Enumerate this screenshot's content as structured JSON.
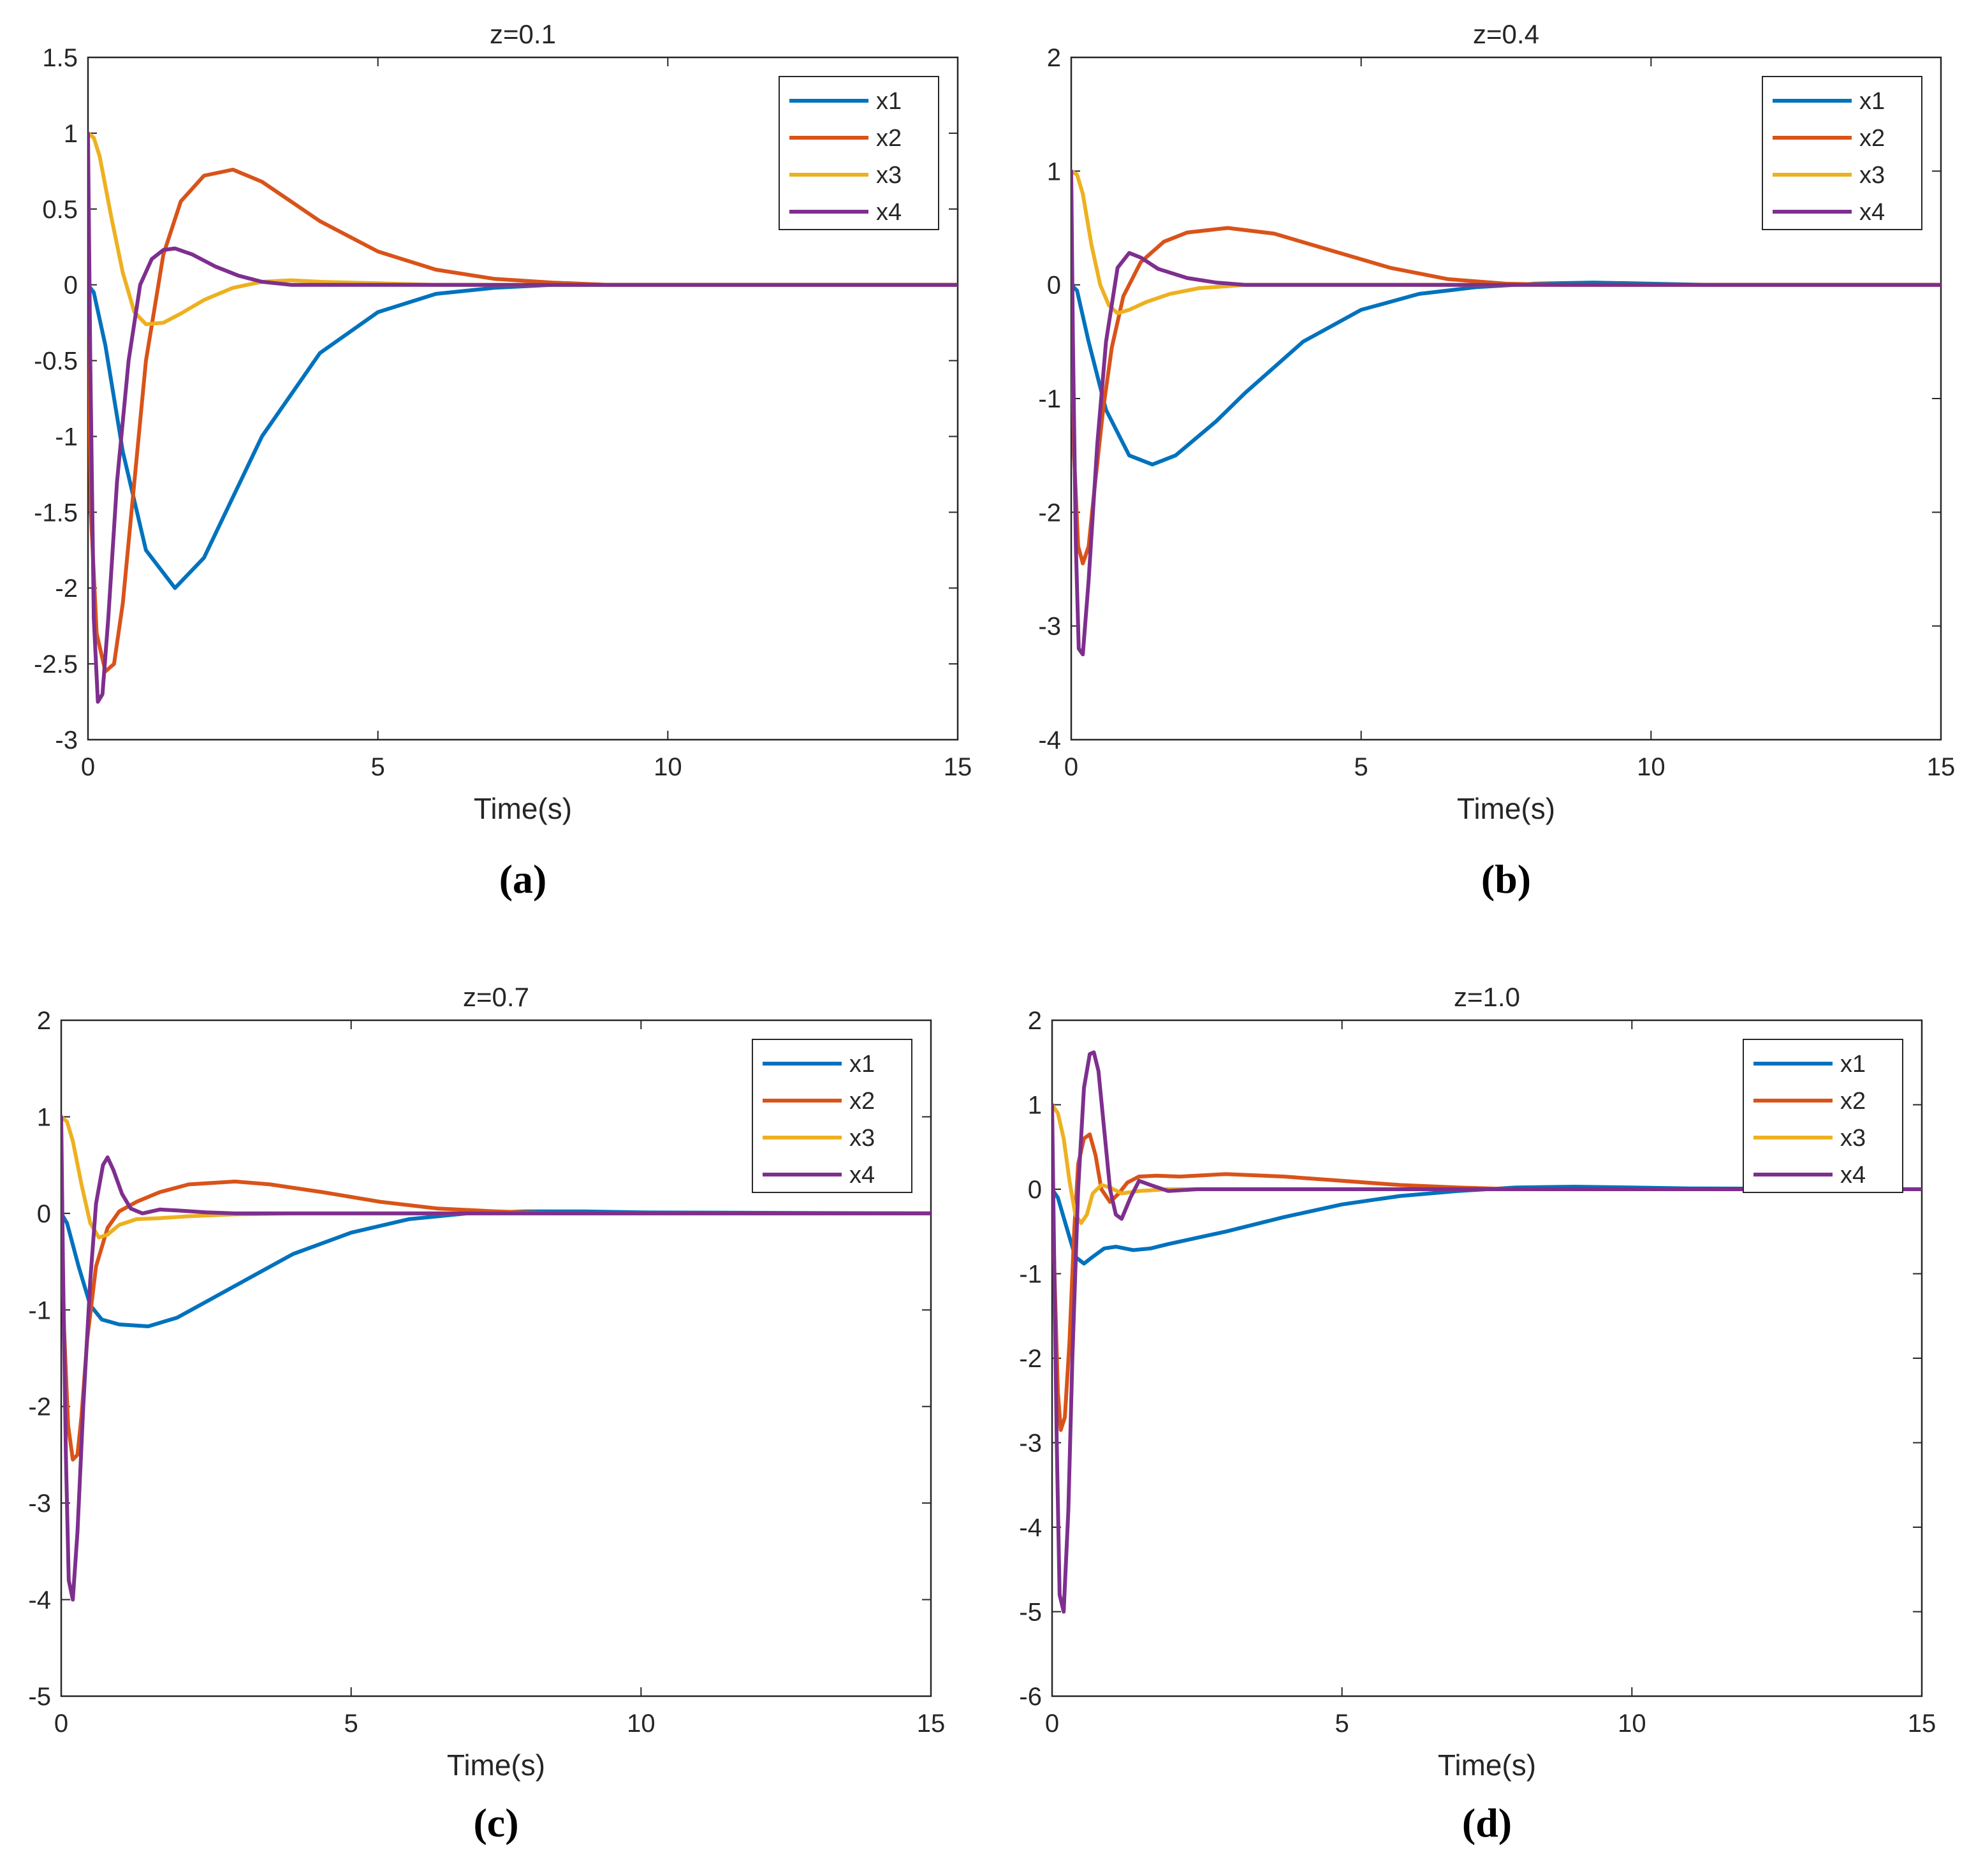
{
  "chart_data": [
    {
      "type": "line",
      "panel_label": "(a)",
      "title": "z=0.1",
      "xlabel": "Time(s)",
      "ylabel": "",
      "xlim": [
        0,
        15
      ],
      "ylim": [
        -3,
        1.5
      ],
      "xticks": [
        0,
        5,
        10,
        15
      ],
      "yticks": [
        -3,
        -2.5,
        -2,
        -1.5,
        -1,
        -0.5,
        0,
        0.5,
        1,
        1.5
      ],
      "ytick_labels": [
        "-3",
        "-2.5",
        "-2",
        "-1.5",
        "-1",
        "-0.5",
        "0",
        "0.5",
        "1",
        "1.5"
      ],
      "legend_position": "top-right",
      "series": [
        {
          "name": "x1",
          "color": "#0072BD",
          "x": [
            0,
            0.1,
            0.3,
            0.6,
            1.0,
            1.5,
            2.0,
            2.5,
            3.0,
            4.0,
            5.0,
            6.0,
            7.0,
            8.0,
            9.0,
            15
          ],
          "y": [
            0,
            -0.05,
            -0.4,
            -1.1,
            -1.75,
            -2.0,
            -1.8,
            -1.4,
            -1.0,
            -0.45,
            -0.18,
            -0.06,
            -0.02,
            0,
            0,
            0
          ]
        },
        {
          "name": "x2",
          "color": "#D95319",
          "x": [
            0,
            0.05,
            0.15,
            0.3,
            0.45,
            0.6,
            0.8,
            1.0,
            1.3,
            1.6,
            2.0,
            2.5,
            3.0,
            3.5,
            4.0,
            5.0,
            6.0,
            7.0,
            8.0,
            9.0,
            15
          ],
          "y": [
            0,
            -1.5,
            -2.3,
            -2.55,
            -2.5,
            -2.1,
            -1.3,
            -0.5,
            0.2,
            0.55,
            0.72,
            0.76,
            0.68,
            0.55,
            0.42,
            0.22,
            0.1,
            0.04,
            0.015,
            0,
            0
          ]
        },
        {
          "name": "x3",
          "color": "#EDB120",
          "x": [
            0,
            0.1,
            0.2,
            0.4,
            0.6,
            0.8,
            1.0,
            1.3,
            1.6,
            2.0,
            2.5,
            3.0,
            3.5,
            4.0,
            5.0,
            6.0,
            7.0,
            15
          ],
          "y": [
            1,
            0.97,
            0.85,
            0.45,
            0.08,
            -0.18,
            -0.26,
            -0.25,
            -0.19,
            -0.1,
            -0.02,
            0.02,
            0.03,
            0.02,
            0.01,
            0,
            0,
            0
          ]
        },
        {
          "name": "x4",
          "color": "#7E2F8E",
          "x": [
            0,
            0.04,
            0.1,
            0.17,
            0.25,
            0.35,
            0.5,
            0.7,
            0.9,
            1.1,
            1.3,
            1.5,
            1.8,
            2.2,
            2.6,
            3.0,
            3.5,
            4.0,
            5.0,
            15
          ],
          "y": [
            1,
            -0.5,
            -2.2,
            -2.75,
            -2.7,
            -2.2,
            -1.3,
            -0.5,
            0.0,
            0.17,
            0.23,
            0.24,
            0.2,
            0.12,
            0.06,
            0.02,
            0,
            0,
            0,
            0
          ]
        }
      ]
    },
    {
      "type": "line",
      "panel_label": "(b)",
      "title": "z=0.4",
      "xlabel": "Time(s)",
      "ylabel": "",
      "xlim": [
        0,
        15
      ],
      "ylim": [
        -4,
        2
      ],
      "xticks": [
        0,
        5,
        10,
        15
      ],
      "yticks": [
        -4,
        -3,
        -2,
        -1,
        0,
        1,
        2
      ],
      "ytick_labels": [
        "-4",
        "-3",
        "-2",
        "-1",
        "0",
        "1",
        "2"
      ],
      "legend_position": "top-right",
      "series": [
        {
          "name": "x1",
          "color": "#0072BD",
          "x": [
            0,
            0.1,
            0.3,
            0.6,
            1.0,
            1.4,
            1.8,
            2.5,
            3.0,
            4.0,
            5.0,
            6.0,
            7.0,
            8.0,
            9.0,
            10.0,
            11.0,
            15
          ],
          "y": [
            0,
            -0.05,
            -0.5,
            -1.1,
            -1.5,
            -1.58,
            -1.5,
            -1.2,
            -0.95,
            -0.5,
            -0.22,
            -0.08,
            -0.02,
            0.01,
            0.02,
            0.01,
            0,
            0
          ]
        },
        {
          "name": "x2",
          "color": "#D95319",
          "x": [
            0,
            0.05,
            0.12,
            0.2,
            0.3,
            0.4,
            0.55,
            0.7,
            0.9,
            1.2,
            1.6,
            2.0,
            2.7,
            3.5,
            4.5,
            5.5,
            6.5,
            7.5,
            8.5,
            15
          ],
          "y": [
            0,
            -1.5,
            -2.3,
            -2.45,
            -2.3,
            -1.8,
            -1.1,
            -0.55,
            -0.1,
            0.2,
            0.38,
            0.46,
            0.5,
            0.45,
            0.3,
            0.15,
            0.05,
            0.01,
            0,
            0
          ]
        },
        {
          "name": "x3",
          "color": "#EDB120",
          "x": [
            0,
            0.1,
            0.2,
            0.35,
            0.5,
            0.65,
            0.8,
            1.0,
            1.3,
            1.7,
            2.2,
            3.0,
            4.0,
            15
          ],
          "y": [
            1,
            0.97,
            0.8,
            0.35,
            0.0,
            -0.18,
            -0.25,
            -0.22,
            -0.15,
            -0.08,
            -0.03,
            0,
            0,
            0
          ]
        },
        {
          "name": "x4",
          "color": "#7E2F8E",
          "x": [
            0,
            0.03,
            0.08,
            0.13,
            0.2,
            0.3,
            0.45,
            0.6,
            0.8,
            1.0,
            1.2,
            1.5,
            2.0,
            2.5,
            3.0,
            3.5,
            15
          ],
          "y": [
            1,
            -0.5,
            -2.3,
            -3.2,
            -3.25,
            -2.6,
            -1.4,
            -0.5,
            0.15,
            0.28,
            0.24,
            0.14,
            0.06,
            0.02,
            0,
            0,
            0
          ]
        }
      ]
    },
    {
      "type": "line",
      "panel_label": "(c)",
      "title": "z=0.7",
      "xlabel": "Time(s)",
      "ylabel": "",
      "xlim": [
        0,
        15
      ],
      "ylim": [
        -5,
        2
      ],
      "xticks": [
        0,
        5,
        10,
        15
      ],
      "yticks": [
        -5,
        -4,
        -3,
        -2,
        -1,
        0,
        1,
        2
      ],
      "ytick_labels": [
        "-5",
        "-4",
        "-3",
        "-2",
        "-1",
        "0",
        "1",
        "2"
      ],
      "legend_position": "top-right",
      "series": [
        {
          "name": "x1",
          "color": "#0072BD",
          "x": [
            0,
            0.1,
            0.3,
            0.5,
            0.7,
            1.0,
            1.5,
            2.0,
            3.0,
            4.0,
            5.0,
            6.0,
            7.0,
            8.0,
            9.0,
            10.0,
            15
          ],
          "y": [
            0,
            -0.1,
            -0.55,
            -0.95,
            -1.1,
            -1.15,
            -1.17,
            -1.08,
            -0.75,
            -0.42,
            -0.2,
            -0.06,
            0,
            0.02,
            0.02,
            0.01,
            0
          ]
        },
        {
          "name": "x2",
          "color": "#D95319",
          "x": [
            0,
            0.05,
            0.12,
            0.2,
            0.28,
            0.35,
            0.45,
            0.6,
            0.8,
            1.0,
            1.3,
            1.7,
            2.2,
            3.0,
            3.6,
            4.5,
            5.5,
            6.5,
            7.5,
            8.5,
            15
          ],
          "y": [
            0,
            -1.2,
            -2.2,
            -2.55,
            -2.5,
            -2.1,
            -1.3,
            -0.55,
            -0.15,
            0.02,
            0.12,
            0.22,
            0.3,
            0.33,
            0.3,
            0.22,
            0.12,
            0.05,
            0.02,
            0,
            0
          ]
        },
        {
          "name": "x3",
          "color": "#EDB120",
          "x": [
            0,
            0.1,
            0.2,
            0.35,
            0.5,
            0.65,
            0.8,
            1.0,
            1.3,
            1.7,
            2.2,
            3.0,
            4.0,
            15
          ],
          "y": [
            1,
            0.95,
            0.75,
            0.3,
            -0.1,
            -0.25,
            -0.22,
            -0.12,
            -0.06,
            -0.05,
            -0.03,
            -0.01,
            0,
            0
          ]
        },
        {
          "name": "x4",
          "color": "#7E2F8E",
          "x": [
            0,
            0.03,
            0.08,
            0.13,
            0.2,
            0.28,
            0.38,
            0.5,
            0.6,
            0.72,
            0.8,
            0.9,
            1.05,
            1.2,
            1.4,
            1.7,
            2.0,
            2.5,
            3.0,
            15
          ],
          "y": [
            1,
            -0.5,
            -2.5,
            -3.8,
            -4.0,
            -3.3,
            -2.0,
            -0.7,
            0.1,
            0.5,
            0.58,
            0.45,
            0.2,
            0.05,
            0.0,
            0.04,
            0.03,
            0.01,
            0,
            0
          ]
        }
      ]
    },
    {
      "type": "line",
      "panel_label": "(d)",
      "title": "z=1.0",
      "xlabel": "Time(s)",
      "ylabel": "",
      "xlim": [
        0,
        15
      ],
      "ylim": [
        -6,
        2
      ],
      "xticks": [
        0,
        5,
        10,
        15
      ],
      "yticks": [
        -6,
        -5,
        -4,
        -3,
        -2,
        -1,
        0,
        1,
        2
      ],
      "ytick_labels": [
        "-6",
        "-5",
        "-4",
        "-3",
        "-2",
        "-1",
        "0",
        "1",
        "2"
      ],
      "legend_position": "top-right",
      "series": [
        {
          "name": "x1",
          "color": "#0072BD",
          "x": [
            0,
            0.1,
            0.25,
            0.4,
            0.55,
            0.7,
            0.9,
            1.1,
            1.4,
            1.7,
            2.0,
            3.0,
            4.0,
            5.0,
            6.0,
            7.0,
            8.0,
            9.0,
            10.0,
            11.0,
            15
          ],
          "y": [
            0,
            -0.1,
            -0.45,
            -0.8,
            -0.88,
            -0.8,
            -0.7,
            -0.68,
            -0.72,
            -0.7,
            -0.65,
            -0.5,
            -0.33,
            -0.18,
            -0.08,
            -0.02,
            0.02,
            0.03,
            0.02,
            0.01,
            0
          ]
        },
        {
          "name": "x2",
          "color": "#D95319",
          "x": [
            0,
            0.05,
            0.1,
            0.15,
            0.22,
            0.3,
            0.38,
            0.45,
            0.55,
            0.65,
            0.75,
            0.85,
            1.0,
            1.15,
            1.3,
            1.5,
            1.8,
            2.2,
            3.0,
            4.0,
            5.0,
            6.0,
            7.0,
            8.0,
            15
          ],
          "y": [
            0,
            -1.2,
            -2.4,
            -2.85,
            -2.7,
            -1.8,
            -0.5,
            0.3,
            0.6,
            0.65,
            0.4,
            0.0,
            -0.15,
            -0.05,
            0.08,
            0.15,
            0.16,
            0.15,
            0.18,
            0.15,
            0.1,
            0.05,
            0.02,
            0,
            0
          ]
        },
        {
          "name": "x3",
          "color": "#EDB120",
          "x": [
            0,
            0.1,
            0.2,
            0.3,
            0.4,
            0.5,
            0.6,
            0.7,
            0.85,
            1.0,
            1.2,
            1.5,
            2.0,
            3.0,
            15
          ],
          "y": [
            1,
            0.9,
            0.6,
            0.1,
            -0.3,
            -0.4,
            -0.3,
            -0.05,
            0.05,
            0.02,
            -0.05,
            -0.02,
            0,
            0,
            0
          ]
        },
        {
          "name": "x4",
          "color": "#7E2F8E",
          "x": [
            0,
            0.03,
            0.08,
            0.13,
            0.2,
            0.28,
            0.35,
            0.45,
            0.55,
            0.65,
            0.72,
            0.8,
            0.9,
            1.0,
            1.1,
            1.2,
            1.35,
            1.5,
            1.7,
            2.0,
            2.5,
            3.0,
            15
          ],
          "y": [
            1,
            -0.5,
            -3.0,
            -4.8,
            -5.0,
            -3.8,
            -2.0,
            0.0,
            1.2,
            1.6,
            1.62,
            1.4,
            0.7,
            0.0,
            -0.3,
            -0.35,
            -0.1,
            0.1,
            0.05,
            -0.02,
            0,
            0,
            0
          ]
        }
      ]
    }
  ]
}
